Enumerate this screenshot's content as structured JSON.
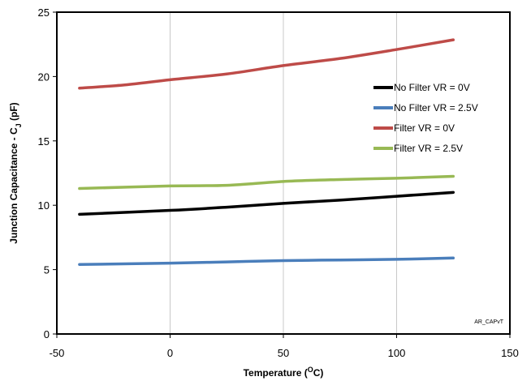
{
  "chart_data": {
    "type": "line",
    "xlabel_main": "Temperature (",
    "xlabel_sup": "O",
    "xlabel_end": "C)",
    "ylabel_main": "Junction Capacitance - C",
    "ylabel_sub": "J",
    "ylabel_end": " (pF)",
    "xlim": [
      -50,
      150
    ],
    "ylim": [
      0,
      25
    ],
    "xticks": [
      -50,
      0,
      50,
      100,
      150
    ],
    "yticks": [
      0,
      5,
      10,
      15,
      20,
      25
    ],
    "grid": "vertical",
    "legend_position": "right",
    "annotation": "AR_CAPvT",
    "series": [
      {
        "name": "No Filter VR = 0V",
        "color": "#000000",
        "x": [
          -40,
          0,
          25,
          50,
          75,
          100,
          125
        ],
        "y": [
          9.3,
          9.6,
          9.85,
          10.15,
          10.4,
          10.7,
          11.0
        ]
      },
      {
        "name": "No Filter VR = 2.5V",
        "color": "#4a7ebb",
        "x": [
          -40,
          0,
          25,
          50,
          75,
          100,
          125
        ],
        "y": [
          5.4,
          5.5,
          5.6,
          5.7,
          5.75,
          5.8,
          5.9
        ]
      },
      {
        "name": "Filter VR = 0V",
        "color": "#be4b48",
        "x": [
          -40,
          -20,
          0,
          25,
          50,
          75,
          100,
          125
        ],
        "y": [
          19.1,
          19.35,
          19.75,
          20.2,
          20.85,
          21.4,
          22.1,
          22.85
        ]
      },
      {
        "name": "Filter VR = 2.5V",
        "color": "#98b954",
        "x": [
          -40,
          0,
          25,
          50,
          75,
          100,
          125
        ],
        "y": [
          11.3,
          11.5,
          11.55,
          11.85,
          12.0,
          12.1,
          12.25
        ]
      }
    ]
  }
}
